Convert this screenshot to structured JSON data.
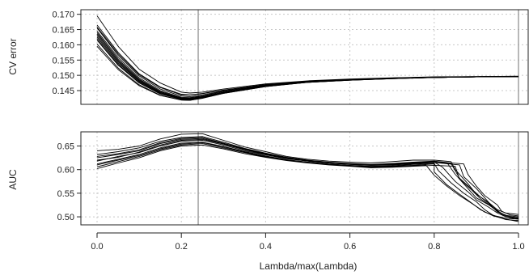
{
  "chart_data": [
    {
      "type": "line",
      "panel": "top",
      "xlabel": "",
      "ylabel": "CV error",
      "xlim": [
        0,
        1
      ],
      "ylim": [
        0.1405,
        0.1715
      ],
      "yticks": [
        0.145,
        0.15,
        0.155,
        0.16,
        0.165,
        0.17
      ],
      "ytick_labels": [
        "0.145",
        "0.150",
        "0.155",
        "0.160",
        "0.165",
        "0.170"
      ],
      "grid": true,
      "vlines": [
        0.24,
        1.0
      ],
      "series": [
        {
          "x": [
            0,
            0.05,
            0.1,
            0.15,
            0.2,
            0.22,
            0.25,
            0.3,
            0.4,
            0.5,
            0.6,
            0.7,
            0.8,
            0.9,
            1.0
          ],
          "values": [
            0.1695,
            0.1595,
            0.152,
            0.1475,
            0.1445,
            0.1442,
            0.1445,
            0.1455,
            0.1472,
            0.1482,
            0.1488,
            0.1492,
            0.1495,
            0.1496,
            0.1497
          ]
        },
        {
          "x": [
            0,
            0.05,
            0.1,
            0.15,
            0.2,
            0.22,
            0.25,
            0.3,
            0.4,
            0.5,
            0.6,
            0.7,
            0.8,
            0.9,
            1.0
          ],
          "values": [
            0.1665,
            0.1575,
            0.1505,
            0.1462,
            0.1438,
            0.1436,
            0.1441,
            0.1452,
            0.147,
            0.1481,
            0.1487,
            0.1491,
            0.1494,
            0.1496,
            0.1497
          ]
        },
        {
          "x": [
            0,
            0.05,
            0.1,
            0.15,
            0.2,
            0.22,
            0.25,
            0.3,
            0.4,
            0.5,
            0.6,
            0.7,
            0.8,
            0.9,
            1.0
          ],
          "values": [
            0.1655,
            0.1565,
            0.1498,
            0.1455,
            0.1432,
            0.143,
            0.1436,
            0.1449,
            0.1468,
            0.148,
            0.1486,
            0.1491,
            0.1494,
            0.1495,
            0.1496
          ]
        },
        {
          "x": [
            0,
            0.05,
            0.1,
            0.15,
            0.2,
            0.22,
            0.25,
            0.3,
            0.4,
            0.5,
            0.6,
            0.7,
            0.8,
            0.9,
            1.0
          ],
          "values": [
            0.1645,
            0.1558,
            0.1492,
            0.145,
            0.1428,
            0.1427,
            0.1433,
            0.1447,
            0.1467,
            0.1479,
            0.1486,
            0.149,
            0.1494,
            0.1495,
            0.1496
          ]
        },
        {
          "x": [
            0,
            0.05,
            0.1,
            0.15,
            0.2,
            0.22,
            0.25,
            0.3,
            0.4,
            0.5,
            0.6,
            0.7,
            0.8,
            0.9,
            1.0
          ],
          "values": [
            0.164,
            0.1552,
            0.1488,
            0.1447,
            0.1426,
            0.1425,
            0.1431,
            0.1445,
            0.1466,
            0.1479,
            0.1485,
            0.149,
            0.1493,
            0.1495,
            0.1496
          ]
        },
        {
          "x": [
            0,
            0.05,
            0.1,
            0.15,
            0.2,
            0.22,
            0.25,
            0.3,
            0.4,
            0.5,
            0.6,
            0.7,
            0.8,
            0.9,
            1.0
          ],
          "values": [
            0.1635,
            0.1548,
            0.1485,
            0.1445,
            0.1425,
            0.1424,
            0.143,
            0.1444,
            0.1466,
            0.1478,
            0.1485,
            0.149,
            0.1493,
            0.1495,
            0.1496
          ]
        },
        {
          "x": [
            0,
            0.05,
            0.1,
            0.15,
            0.2,
            0.22,
            0.25,
            0.3,
            0.4,
            0.5,
            0.6,
            0.7,
            0.8,
            0.9,
            1.0
          ],
          "values": [
            0.163,
            0.1544,
            0.1482,
            0.1443,
            0.1424,
            0.1423,
            0.1429,
            0.1444,
            0.1465,
            0.1478,
            0.1485,
            0.149,
            0.1493,
            0.1495,
            0.1496
          ]
        },
        {
          "x": [
            0,
            0.05,
            0.1,
            0.15,
            0.2,
            0.22,
            0.25,
            0.3,
            0.4,
            0.5,
            0.6,
            0.7,
            0.8,
            0.9,
            1.0
          ],
          "values": [
            0.1625,
            0.154,
            0.148,
            0.1442,
            0.1423,
            0.1422,
            0.1429,
            0.1443,
            0.1465,
            0.1478,
            0.1485,
            0.149,
            0.1493,
            0.1495,
            0.1496
          ]
        },
        {
          "x": [
            0,
            0.05,
            0.1,
            0.15,
            0.2,
            0.22,
            0.25,
            0.3,
            0.4,
            0.5,
            0.6,
            0.7,
            0.8,
            0.9,
            1.0
          ],
          "values": [
            0.1615,
            0.1533,
            0.1475,
            0.1439,
            0.1421,
            0.142,
            0.1427,
            0.1442,
            0.1464,
            0.1477,
            0.1484,
            0.1489,
            0.1493,
            0.1495,
            0.1496
          ]
        },
        {
          "x": [
            0,
            0.05,
            0.1,
            0.15,
            0.2,
            0.22,
            0.25,
            0.3,
            0.4,
            0.5,
            0.6,
            0.7,
            0.8,
            0.9,
            1.0
          ],
          "values": [
            0.1602,
            0.1524,
            0.1469,
            0.1435,
            0.1419,
            0.1418,
            0.1426,
            0.1441,
            0.1463,
            0.1477,
            0.1484,
            0.1489,
            0.1493,
            0.1495,
            0.1496
          ]
        },
        {
          "x": [
            0,
            0.05,
            0.1,
            0.15,
            0.2,
            0.22,
            0.25,
            0.3,
            0.4,
            0.5,
            0.6,
            0.7,
            0.8,
            0.9,
            1.0
          ],
          "values": [
            0.1595,
            0.1519,
            0.1466,
            0.1434,
            0.1419,
            0.1418,
            0.1425,
            0.1441,
            0.1463,
            0.1477,
            0.1484,
            0.1489,
            0.1493,
            0.1495,
            0.1496
          ]
        },
        {
          "x": [
            0,
            0.05,
            0.1,
            0.15,
            0.2,
            0.22,
            0.25,
            0.3,
            0.4,
            0.5,
            0.6,
            0.7,
            0.8,
            0.9,
            1.0
          ],
          "values": [
            0.1658,
            0.157,
            0.1502,
            0.146,
            0.1436,
            0.1435,
            0.144,
            0.1451,
            0.1469,
            0.148,
            0.1486,
            0.1491,
            0.1494,
            0.1495,
            0.1496
          ]
        },
        {
          "x": [
            0,
            0.05,
            0.1,
            0.15,
            0.2,
            0.22,
            0.25,
            0.3,
            0.4,
            0.5,
            0.6,
            0.7,
            0.8,
            0.9,
            1.0
          ],
          "values": [
            0.162,
            0.1536,
            0.1477,
            0.144,
            0.1422,
            0.1421,
            0.1428,
            0.1443,
            0.1465,
            0.1478,
            0.1485,
            0.149,
            0.1493,
            0.1495,
            0.1496
          ]
        }
      ]
    },
    {
      "type": "line",
      "panel": "bottom",
      "xlabel": "Lambda/max(Lambda)",
      "ylabel": "AUC",
      "xlim": [
        0,
        1
      ],
      "ylim": [
        0.483,
        0.68
      ],
      "xticks": [
        0,
        0.2,
        0.4,
        0.6,
        0.8,
        1.0
      ],
      "xtick_labels": [
        "0.0",
        "0.2",
        "0.4",
        "0.6",
        "0.8",
        "1.0"
      ],
      "yticks": [
        0.5,
        0.55,
        0.6,
        0.65
      ],
      "ytick_labels": [
        "0.50",
        "0.55",
        "0.60",
        "0.65"
      ],
      "grid": true,
      "vlines": [
        0.24,
        1.0
      ],
      "series": [
        {
          "x": [
            0,
            0.05,
            0.1,
            0.15,
            0.2,
            0.25,
            0.3,
            0.35,
            0.4,
            0.45,
            0.5,
            0.55,
            0.6,
            0.65,
            0.7,
            0.75,
            0.8,
            0.84,
            0.85,
            0.88,
            0.9,
            0.93,
            0.95,
            0.97,
            1.0
          ],
          "values": [
            0.64,
            0.643,
            0.65,
            0.665,
            0.675,
            0.676,
            0.662,
            0.648,
            0.638,
            0.628,
            0.622,
            0.618,
            0.616,
            0.614,
            0.617,
            0.62,
            0.62,
            0.617,
            0.6,
            0.57,
            0.548,
            0.53,
            0.515,
            0.508,
            0.505
          ]
        },
        {
          "x": [
            0,
            0.05,
            0.1,
            0.15,
            0.2,
            0.25,
            0.3,
            0.35,
            0.4,
            0.45,
            0.5,
            0.55,
            0.6,
            0.65,
            0.7,
            0.75,
            0.8,
            0.83,
            0.85,
            0.88,
            0.9,
            0.93,
            0.95,
            0.97,
            1.0
          ],
          "values": [
            0.632,
            0.638,
            0.646,
            0.66,
            0.668,
            0.67,
            0.658,
            0.645,
            0.635,
            0.626,
            0.62,
            0.616,
            0.613,
            0.611,
            0.613,
            0.616,
            0.618,
            0.615,
            0.59,
            0.56,
            0.54,
            0.525,
            0.512,
            0.503,
            0.5
          ]
        },
        {
          "x": [
            0,
            0.05,
            0.1,
            0.15,
            0.2,
            0.25,
            0.3,
            0.35,
            0.4,
            0.45,
            0.5,
            0.55,
            0.6,
            0.65,
            0.7,
            0.75,
            0.8,
            0.82,
            0.85,
            0.88,
            0.9,
            0.93,
            0.95,
            0.97,
            1.0
          ],
          "values": [
            0.625,
            0.632,
            0.64,
            0.655,
            0.664,
            0.666,
            0.655,
            0.643,
            0.633,
            0.624,
            0.619,
            0.615,
            0.612,
            0.61,
            0.611,
            0.614,
            0.616,
            0.605,
            0.575,
            0.553,
            0.536,
            0.52,
            0.508,
            0.5,
            0.497
          ]
        },
        {
          "x": [
            0,
            0.05,
            0.1,
            0.15,
            0.2,
            0.25,
            0.3,
            0.35,
            0.4,
            0.45,
            0.5,
            0.55,
            0.6,
            0.65,
            0.7,
            0.75,
            0.8,
            0.86,
            0.87,
            0.9,
            0.92,
            0.94,
            0.96,
            0.98,
            1.0
          ],
          "values": [
            0.618,
            0.628,
            0.636,
            0.65,
            0.66,
            0.662,
            0.652,
            0.64,
            0.631,
            0.623,
            0.618,
            0.614,
            0.611,
            0.609,
            0.61,
            0.613,
            0.615,
            0.61,
            0.585,
            0.56,
            0.54,
            0.52,
            0.505,
            0.498,
            0.496
          ]
        },
        {
          "x": [
            0,
            0.05,
            0.1,
            0.15,
            0.2,
            0.25,
            0.3,
            0.35,
            0.4,
            0.45,
            0.5,
            0.55,
            0.6,
            0.65,
            0.7,
            0.75,
            0.8,
            0.81,
            0.84,
            0.87,
            0.9,
            0.92,
            0.94,
            0.97,
            1.0
          ],
          "values": [
            0.612,
            0.622,
            0.632,
            0.646,
            0.656,
            0.658,
            0.649,
            0.638,
            0.629,
            0.621,
            0.616,
            0.612,
            0.609,
            0.607,
            0.608,
            0.611,
            0.613,
            0.598,
            0.572,
            0.55,
            0.532,
            0.515,
            0.503,
            0.497,
            0.495
          ]
        },
        {
          "x": [
            0,
            0.05,
            0.1,
            0.15,
            0.2,
            0.25,
            0.3,
            0.35,
            0.4,
            0.45,
            0.5,
            0.55,
            0.6,
            0.65,
            0.7,
            0.75,
            0.78,
            0.8,
            0.83,
            0.86,
            0.89,
            0.92,
            0.95,
            0.97,
            1.0
          ],
          "values": [
            0.606,
            0.617,
            0.628,
            0.642,
            0.652,
            0.655,
            0.646,
            0.636,
            0.627,
            0.62,
            0.615,
            0.611,
            0.608,
            0.605,
            0.606,
            0.608,
            0.61,
            0.588,
            0.565,
            0.545,
            0.528,
            0.51,
            0.5,
            0.494,
            0.492
          ]
        },
        {
          "x": [
            0,
            0.05,
            0.1,
            0.15,
            0.2,
            0.25,
            0.3,
            0.35,
            0.4,
            0.45,
            0.5,
            0.55,
            0.6,
            0.65,
            0.7,
            0.75,
            0.8,
            0.85,
            0.86,
            0.89,
            0.91,
            0.94,
            0.96,
            0.98,
            1.0
          ],
          "values": [
            0.602,
            0.614,
            0.625,
            0.64,
            0.65,
            0.652,
            0.644,
            0.634,
            0.626,
            0.619,
            0.614,
            0.61,
            0.607,
            0.604,
            0.605,
            0.607,
            0.609,
            0.607,
            0.58,
            0.556,
            0.538,
            0.52,
            0.507,
            0.5,
            0.498
          ]
        },
        {
          "x": [
            0,
            0.05,
            0.1,
            0.15,
            0.2,
            0.25,
            0.3,
            0.35,
            0.4,
            0.45,
            0.5,
            0.55,
            0.6,
            0.65,
            0.7,
            0.75,
            0.8,
            0.87,
            0.88,
            0.9,
            0.92,
            0.95,
            0.96,
            0.98,
            1.0
          ],
          "values": [
            0.628,
            0.634,
            0.642,
            0.657,
            0.666,
            0.668,
            0.656,
            0.644,
            0.634,
            0.625,
            0.619,
            0.615,
            0.612,
            0.61,
            0.612,
            0.615,
            0.617,
            0.612,
            0.59,
            0.565,
            0.545,
            0.525,
            0.512,
            0.504,
            0.502
          ]
        },
        {
          "x": [
            0,
            0.05,
            0.1,
            0.15,
            0.2,
            0.25,
            0.3,
            0.35,
            0.4,
            0.45,
            0.5,
            0.55,
            0.6,
            0.65,
            0.7,
            0.75,
            0.8,
            0.8,
            0.83,
            0.86,
            0.88,
            0.91,
            0.94,
            0.97,
            1.0
          ],
          "values": [
            0.61,
            0.62,
            0.63,
            0.644,
            0.654,
            0.657,
            0.648,
            0.637,
            0.628,
            0.62,
            0.615,
            0.611,
            0.608,
            0.606,
            0.607,
            0.609,
            0.612,
            0.595,
            0.568,
            0.548,
            0.535,
            0.515,
            0.502,
            0.495,
            0.49
          ]
        },
        {
          "x": [
            0,
            0.05,
            0.1,
            0.15,
            0.2,
            0.25,
            0.3,
            0.35,
            0.4,
            0.45,
            0.5,
            0.55,
            0.6,
            0.65,
            0.7,
            0.75,
            0.8,
            0.84,
            0.86,
            0.89,
            0.91,
            0.93,
            0.95,
            0.98,
            1.0
          ],
          "values": [
            0.62,
            0.626,
            0.637,
            0.652,
            0.662,
            0.664,
            0.654,
            0.642,
            0.632,
            0.624,
            0.618,
            0.614,
            0.611,
            0.609,
            0.61,
            0.612,
            0.615,
            0.613,
            0.582,
            0.558,
            0.542,
            0.528,
            0.51,
            0.5,
            0.497
          ]
        }
      ]
    }
  ]
}
